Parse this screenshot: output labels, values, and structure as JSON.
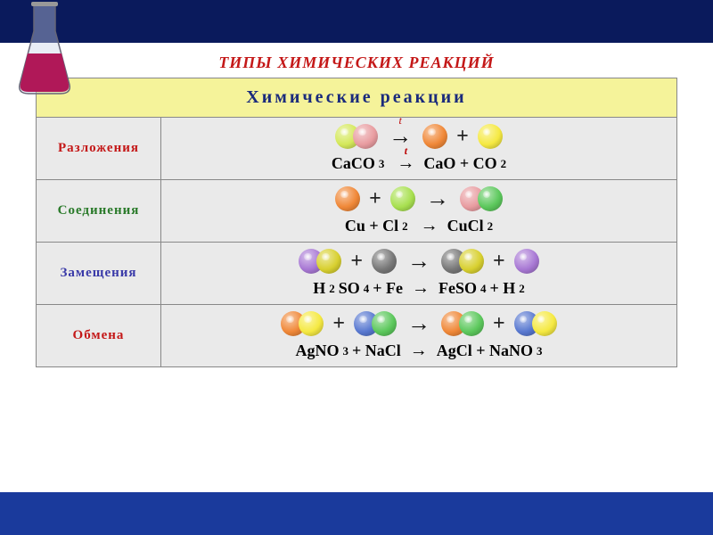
{
  "title": "ТИПЫ ХИМИЧЕСКИХ РЕАКЦИЙ",
  "title_color": "#c41818",
  "table_header": "Химические    реакции",
  "header_bg": "#f5f39a",
  "header_color": "#1a2a7c",
  "cell_bg": "#eaeaea",
  "border_color": "#888888",
  "atom_size": 28,
  "colors": {
    "yellow_green": "#d4e85a",
    "pink": "#e89ca0",
    "yellow": "#f5e942",
    "orange": "#f08838",
    "lime": "#a8e050",
    "green": "#5cc85c",
    "purple": "#a878d4",
    "dark_yellow": "#d8d030",
    "grey": "#787878",
    "blue": "#5878d0"
  },
  "rows": [
    {
      "label": "Разложения",
      "label_color": "#c41818",
      "visual": [
        {
          "type": "mol",
          "atoms": [
            "yellow_green",
            "pink"
          ]
        },
        {
          "type": "arrow",
          "t": true
        },
        {
          "type": "mol",
          "atoms": [
            "orange"
          ]
        },
        {
          "type": "plus"
        },
        {
          "type": "mol",
          "atoms": [
            "yellow"
          ]
        }
      ],
      "equation": [
        "CaCO",
        "3",
        " ",
        "→t",
        " CaO + CO",
        "2"
      ]
    },
    {
      "label": "Соединения",
      "label_color": "#2a7a2a",
      "visual": [
        {
          "type": "mol",
          "atoms": [
            "orange"
          ]
        },
        {
          "type": "plus"
        },
        {
          "type": "mol",
          "atoms": [
            "lime"
          ]
        },
        {
          "type": "arrow"
        },
        {
          "type": "mol",
          "atoms": [
            "pink",
            "green"
          ]
        }
      ],
      "equation": [
        "Cu  +  Cl",
        "2",
        "  ",
        "→",
        "  CuCl",
        "2"
      ]
    },
    {
      "label": "Замещения",
      "label_color": "#3939a8",
      "visual": [
        {
          "type": "mol",
          "atoms": [
            "purple",
            "dark_yellow"
          ]
        },
        {
          "type": "plus"
        },
        {
          "type": "mol",
          "atoms": [
            "grey"
          ]
        },
        {
          "type": "arrow"
        },
        {
          "type": "mol",
          "atoms": [
            "grey",
            "dark_yellow"
          ]
        },
        {
          "type": "plus"
        },
        {
          "type": "mol",
          "atoms": [
            "purple"
          ]
        }
      ],
      "equation": [
        "H",
        "2",
        "SO",
        "4",
        " + Fe ",
        "→",
        " FeSO",
        "4",
        "  +  H",
        "2"
      ]
    },
    {
      "label": "Обмена",
      "label_color": "#c41818",
      "visual": [
        {
          "type": "mol",
          "atoms": [
            "orange",
            "yellow"
          ]
        },
        {
          "type": "plus"
        },
        {
          "type": "mol",
          "atoms": [
            "blue",
            "green"
          ]
        },
        {
          "type": "arrow"
        },
        {
          "type": "mol",
          "atoms": [
            "orange",
            "green"
          ]
        },
        {
          "type": "plus"
        },
        {
          "type": "mol",
          "atoms": [
            "blue",
            "yellow"
          ]
        }
      ],
      "equation": [
        "AgNO",
        "3",
        " + NaCl ",
        "→",
        " AgCl  +  NaNO",
        "3"
      ]
    }
  ]
}
